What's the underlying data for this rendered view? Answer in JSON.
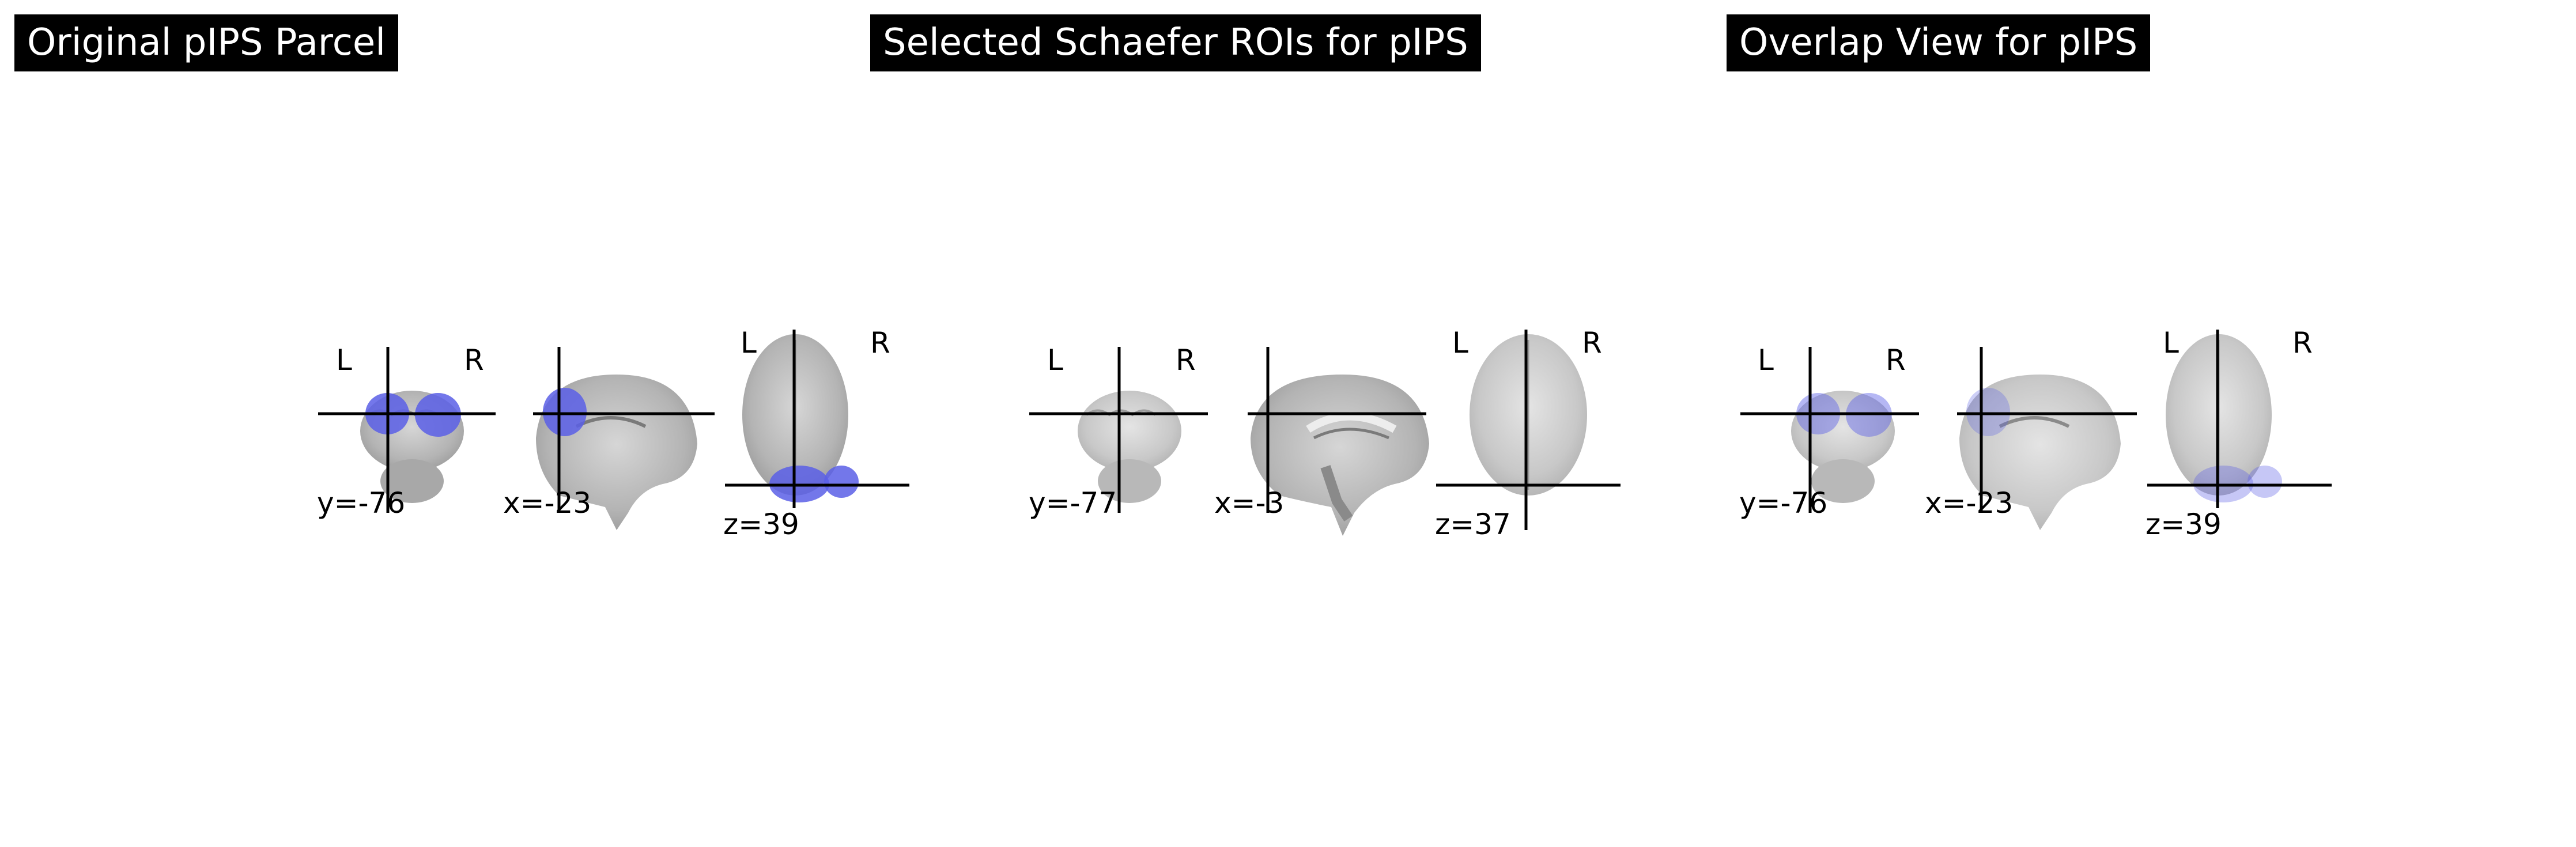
{
  "panels": [
    {
      "title": "Original pIPS Parcel",
      "coronal": {
        "coord": "y=-76",
        "left": "L",
        "right": "R"
      },
      "sagittal": {
        "coord": "x=-23"
      },
      "axial": {
        "coord": "z=39",
        "left": "L",
        "right": "R"
      }
    },
    {
      "title": "Selected Schaefer ROIs for pIPS",
      "coronal": {
        "coord": "y=-77",
        "left": "L",
        "right": "R"
      },
      "sagittal": {
        "coord": "x=-3"
      },
      "axial": {
        "coord": "z=37",
        "left": "L",
        "right": "R"
      }
    },
    {
      "title": "Overlap View for pIPS",
      "coronal": {
        "coord": "y=-76",
        "left": "L",
        "right": "R"
      },
      "sagittal": {
        "coord": "x=-23"
      },
      "axial": {
        "coord": "z=39",
        "left": "L",
        "right": "R"
      }
    }
  ],
  "colors": {
    "background": "#ffffff",
    "title_bg": "#000000",
    "title_text": "#ffffff",
    "crosshair": "#000000",
    "brain_gray": "#b8b8b8",
    "overlay_blue": "#5b5fe6"
  }
}
